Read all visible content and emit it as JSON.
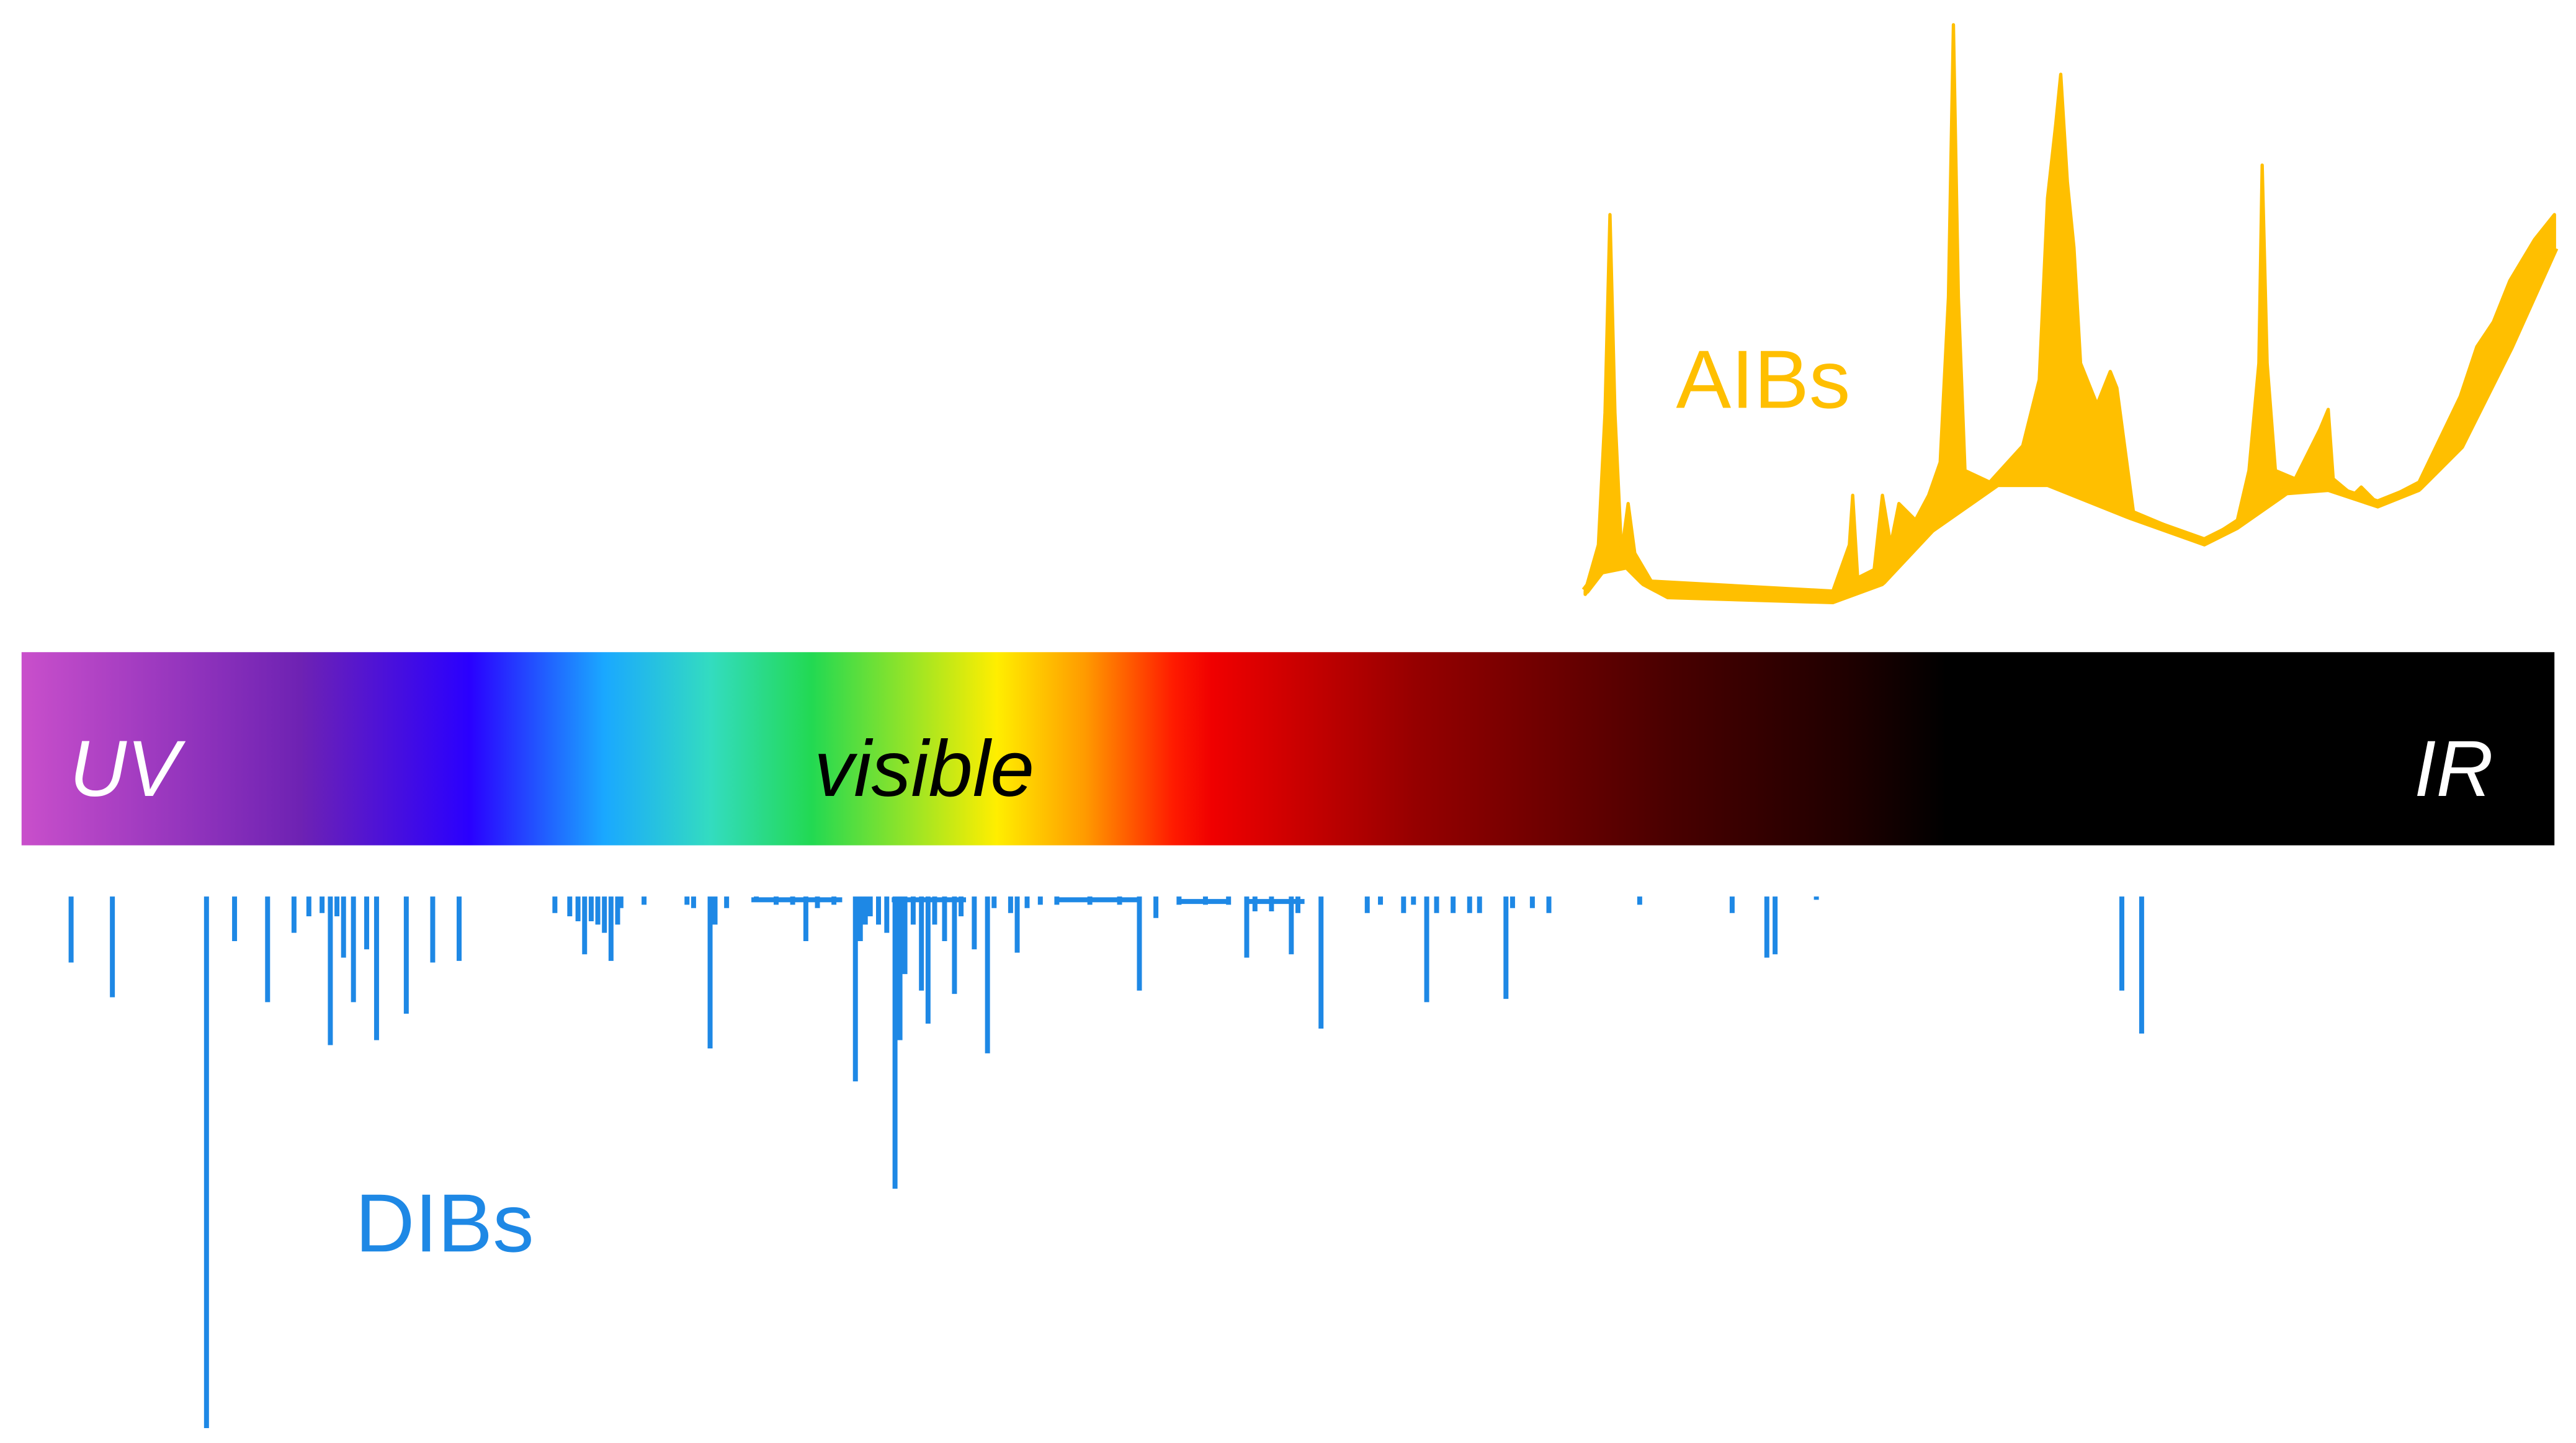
{
  "spectrum": {
    "uv": "UV",
    "visible": "visible",
    "ir": "IR"
  },
  "aibs": {
    "label": "AIBs"
  },
  "dibs": {
    "label": "DIBs"
  }
}
